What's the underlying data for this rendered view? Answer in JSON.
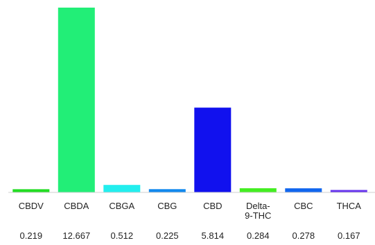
{
  "chart_data": {
    "type": "bar",
    "categories": [
      [
        "CBDV"
      ],
      [
        "CBDA"
      ],
      [
        "CBGA"
      ],
      [
        "CBG"
      ],
      [
        "CBD"
      ],
      [
        "Delta-",
        "9-THC"
      ],
      [
        "CBC"
      ],
      [
        "THCA"
      ]
    ],
    "values": [
      0.219,
      12.667,
      0.512,
      0.225,
      5.814,
      0.284,
      0.278,
      0.167
    ],
    "value_labels": [
      "0.219",
      "12.667",
      "0.512",
      "0.225",
      "5.814",
      "0.284",
      "0.278",
      "0.167"
    ],
    "colors": [
      "#22dd22",
      "#22ee77",
      "#22eeee",
      "#1188ee",
      "#1111ee",
      "#44ee22",
      "#1166ee",
      "#6633ee"
    ],
    "ylim": [
      0,
      12.667
    ],
    "title": "",
    "xlabel": "",
    "ylabel": "",
    "grid": false,
    "legend": "none"
  }
}
